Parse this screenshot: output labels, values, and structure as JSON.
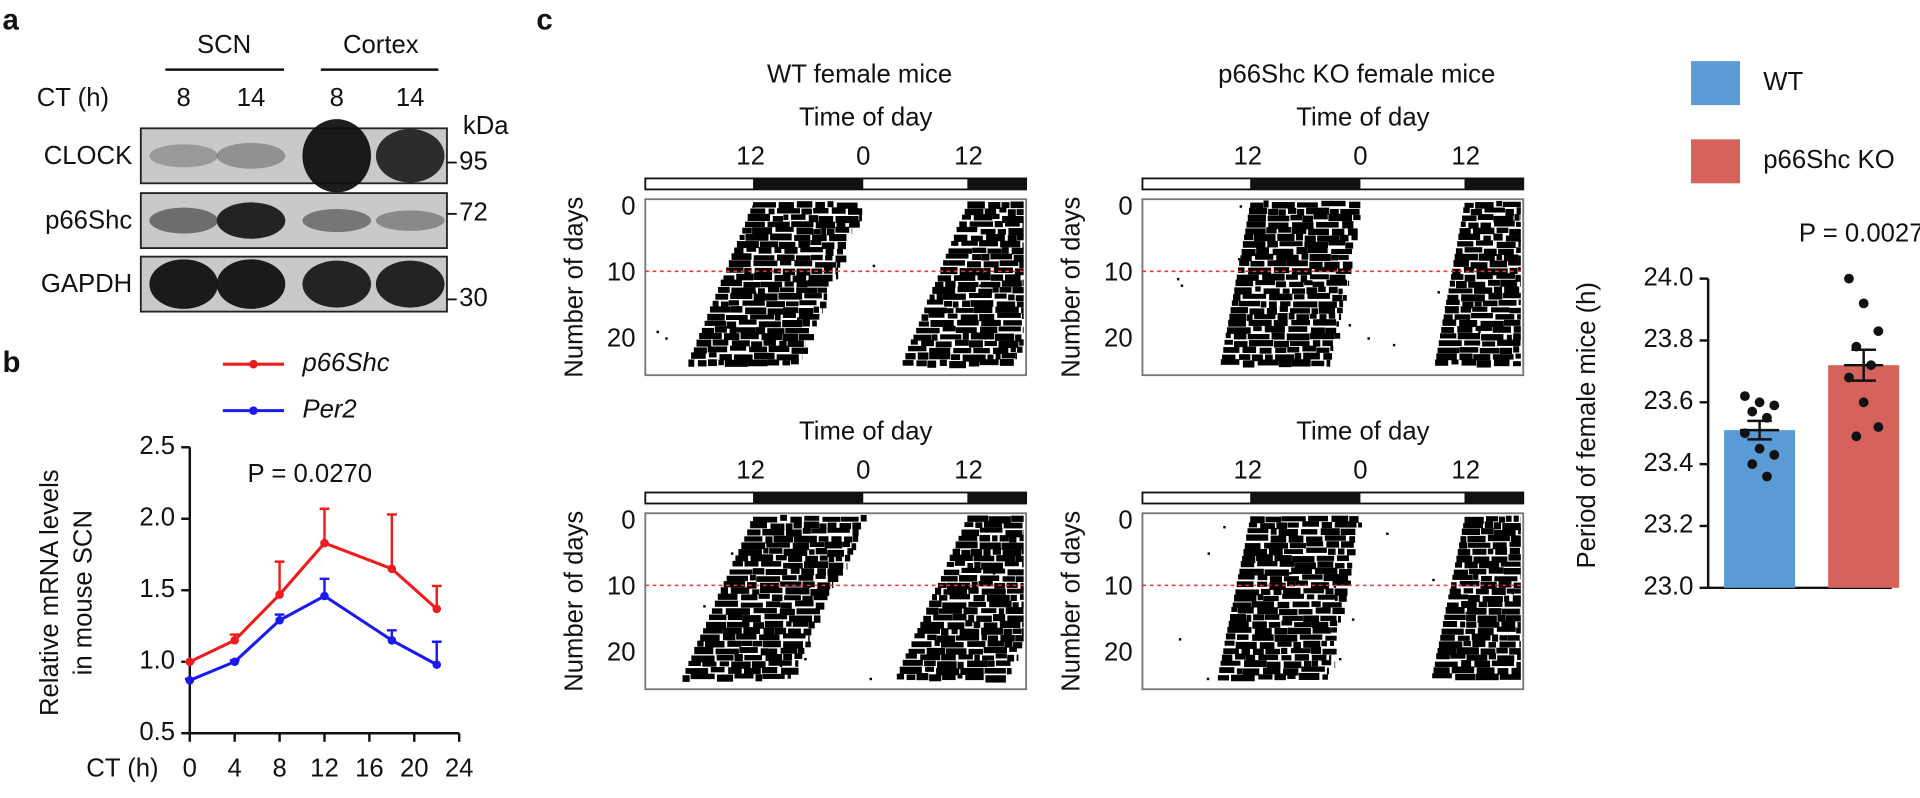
{
  "panel_labels": [
    "a",
    "b",
    "c"
  ],
  "panel_a": {
    "groups": [
      "SCN",
      "Cortex"
    ],
    "row_label": "CT (h)",
    "lanes": [
      "8",
      "14",
      "8",
      "14"
    ],
    "unit": "kDa",
    "proteins": [
      "CLOCK",
      "p66Shc",
      "GAPDH"
    ],
    "markers": [
      "95",
      "72",
      "30"
    ]
  },
  "actograms": {
    "titles": [
      "WT female mice",
      "p66Shc KO female mice"
    ],
    "x_label": "Time of day",
    "time_ticks": [
      "12",
      "0",
      "12"
    ],
    "y_label": "Number of days",
    "day_ticks": [
      "0",
      "10",
      "20"
    ]
  },
  "chart_data": [
    {
      "type": "line",
      "x_label": "CT (h)",
      "y_label": [
        "Relative mRNA levels",
        "in mouse SCN"
      ],
      "annotation": "P = 0.0270",
      "x": [
        0,
        4,
        8,
        12,
        18,
        22
      ],
      "series": [
        {
          "name": "p66Shc",
          "color": "#ee1c1c",
          "values": [
            1.0,
            1.15,
            1.47,
            1.83,
            1.65,
            1.37
          ],
          "errors": [
            0,
            0.04,
            0.23,
            0.24,
            0.38,
            0.16
          ]
        },
        {
          "name": "Per2",
          "color": "#1a1aee",
          "values": [
            0.87,
            1.0,
            1.29,
            1.46,
            1.15,
            0.98
          ],
          "errors": [
            0.01,
            0.01,
            0.04,
            0.12,
            0.07,
            0.16
          ]
        }
      ],
      "xlim": [
        0,
        24
      ],
      "xticks": [
        0,
        4,
        8,
        12,
        16,
        20,
        24
      ],
      "ylim": [
        0.5,
        2.5
      ],
      "yticks": [
        0.5,
        {
          "value": 1,
          "label": "1.0"
        },
        1.5,
        {
          "value": 2,
          "label": "2.0"
        },
        2.5
      ]
    },
    {
      "type": "bar",
      "y_label": "Period of female mice (h)",
      "annotation": "P = 0.0027",
      "categories": [
        "WT",
        "p66Shc KO"
      ],
      "colors": [
        "#5b9bd5",
        "#d6625c"
      ],
      "values": [
        23.51,
        23.72
      ],
      "errors": [
        0.03,
        0.05
      ],
      "points": [
        [
          23.62,
          23.6,
          23.59,
          23.57,
          23.55,
          23.5,
          23.45,
          23.43,
          23.4,
          23.36
        ],
        [
          24.0,
          23.92,
          23.83,
          23.78,
          23.72,
          23.68,
          23.6,
          23.52,
          23.49
        ]
      ],
      "ylim": [
        23.0,
        24.0
      ],
      "yticks": [
        {
          "value": 23,
          "label": "23.0"
        },
        23.2,
        23.4,
        23.6,
        23.8,
        {
          "value": 24,
          "label": "24.0"
        }
      ]
    }
  ]
}
